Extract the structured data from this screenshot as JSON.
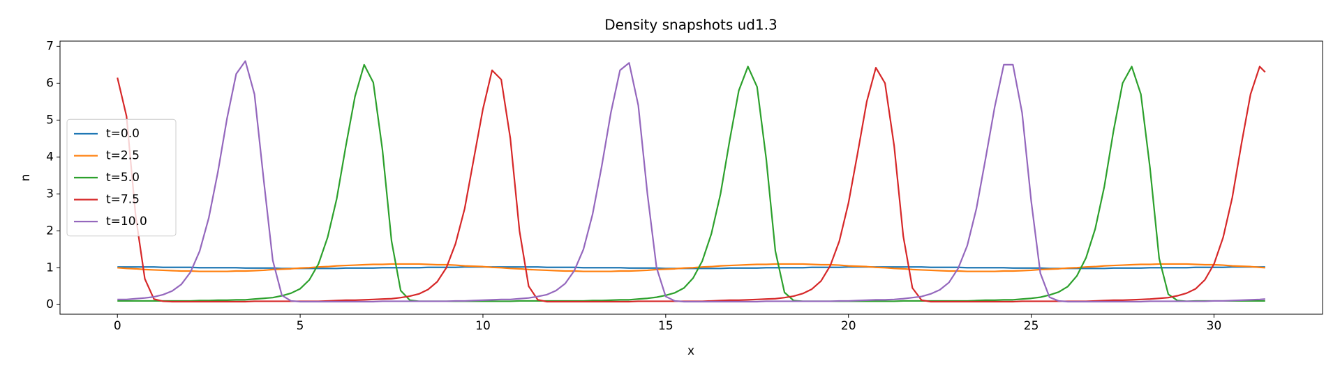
{
  "chart_data": {
    "type": "line",
    "title": "Density snapshots  ud1.3",
    "x_label": "x",
    "y_label": "n",
    "xlim": [
      -1.57,
      32.97
    ],
    "ylim": [
      -0.26,
      7.14
    ],
    "xticks": [
      0,
      5,
      10,
      15,
      20,
      25,
      30
    ],
    "yticks": [
      0,
      1,
      2,
      3,
      4,
      5,
      6,
      7
    ],
    "grid": false,
    "legend": "center left",
    "x": [
      0,
      0.25,
      0.5,
      0.75,
      1,
      1.25,
      1.5,
      1.75,
      2,
      2.25,
      2.5,
      2.75,
      3,
      3.25,
      3.5,
      3.75,
      4,
      4.25,
      4.5,
      4.75,
      5,
      5.25,
      5.5,
      5.75,
      6,
      6.25,
      6.5,
      6.75,
      7,
      7.25,
      7.5,
      7.75,
      8,
      8.25,
      8.5,
      8.75,
      9,
      9.25,
      9.5,
      9.75,
      10,
      10.25,
      10.5,
      10.75,
      11,
      11.25,
      11.5,
      11.75,
      12,
      12.25,
      12.5,
      12.75,
      13,
      13.25,
      13.5,
      13.75,
      14,
      14.25,
      14.5,
      14.75,
      15,
      15.25,
      15.5,
      15.75,
      16,
      16.25,
      16.5,
      16.75,
      17,
      17.25,
      17.5,
      17.75,
      18,
      18.25,
      18.5,
      18.75,
      19,
      19.25,
      19.5,
      19.75,
      20,
      20.25,
      20.5,
      20.75,
      21,
      21.25,
      21.5,
      21.75,
      22,
      22.25,
      22.5,
      22.75,
      23,
      23.25,
      23.5,
      23.75,
      24,
      24.25,
      24.5,
      24.75,
      25,
      25.25,
      25.5,
      25.75,
      26,
      26.25,
      26.5,
      26.75,
      27,
      27.25,
      27.5,
      27.75,
      28,
      28.25,
      28.5,
      28.75,
      29,
      29.25,
      29.5,
      29.75,
      30,
      30.25,
      30.5,
      30.75,
      31,
      31.25,
      31.4
    ],
    "series": [
      {
        "name": "t=0.0",
        "color": "#1f77b4",
        "values": [
          1.02,
          1.02,
          1.02,
          1.02,
          1.02,
          1.01,
          1.01,
          1.01,
          1.01,
          1.0,
          1.0,
          1.0,
          1.0,
          1.0,
          0.99,
          0.99,
          0.99,
          0.99,
          0.98,
          0.98,
          0.98,
          0.98,
          0.98,
          0.98,
          0.98,
          0.99,
          0.99,
          0.99,
          0.99,
          1.0,
          1.0,
          1.0,
          1.0,
          1.0,
          1.01,
          1.01,
          1.01,
          1.01,
          1.02,
          1.02,
          1.02,
          1.02,
          1.02,
          1.02,
          1.02,
          1.02,
          1.02,
          1.01,
          1.01,
          1.01,
          1.01,
          1.0,
          1.0,
          1.0,
          1.0,
          1.0,
          0.99,
          0.99,
          0.99,
          0.99,
          0.98,
          0.98,
          0.98,
          0.98,
          0.98,
          0.98,
          0.98,
          0.99,
          0.99,
          0.99,
          0.99,
          1.0,
          1.0,
          1.0,
          1.0,
          1.0,
          1.01,
          1.01,
          1.01,
          1.01,
          1.02,
          1.02,
          1.02,
          1.02,
          1.02,
          1.02,
          1.02,
          1.02,
          1.02,
          1.01,
          1.01,
          1.01,
          1.01,
          1.0,
          1.0,
          1.0,
          1.0,
          1.0,
          0.99,
          0.99,
          0.99,
          0.99,
          0.98,
          0.98,
          0.98,
          0.98,
          0.98,
          0.98,
          0.98,
          0.99,
          0.99,
          0.99,
          0.99,
          1.0,
          1.0,
          1.0,
          1.0,
          1.0,
          1.01,
          1.01,
          1.01,
          1.01,
          1.02,
          1.02,
          1.02,
          1.02,
          1.02
        ]
      },
      {
        "name": "t=2.5",
        "color": "#ff7f0e",
        "values": [
          1.0,
          0.98,
          0.97,
          0.95,
          0.94,
          0.93,
          0.92,
          0.91,
          0.91,
          0.9,
          0.9,
          0.9,
          0.9,
          0.91,
          0.91,
          0.92,
          0.93,
          0.95,
          0.96,
          0.97,
          0.99,
          1.0,
          1.02,
          1.03,
          1.05,
          1.06,
          1.07,
          1.08,
          1.09,
          1.09,
          1.1,
          1.1,
          1.1,
          1.1,
          1.09,
          1.08,
          1.08,
          1.07,
          1.05,
          1.04,
          1.03,
          1.01,
          1.0,
          0.98,
          0.97,
          0.95,
          0.94,
          0.93,
          0.92,
          0.91,
          0.91,
          0.9,
          0.9,
          0.9,
          0.9,
          0.91,
          0.91,
          0.92,
          0.93,
          0.95,
          0.96,
          0.97,
          0.99,
          1.0,
          1.02,
          1.03,
          1.05,
          1.06,
          1.07,
          1.08,
          1.09,
          1.09,
          1.1,
          1.1,
          1.1,
          1.1,
          1.09,
          1.08,
          1.08,
          1.07,
          1.05,
          1.04,
          1.03,
          1.01,
          1.0,
          0.98,
          0.97,
          0.95,
          0.94,
          0.93,
          0.92,
          0.91,
          0.91,
          0.9,
          0.9,
          0.9,
          0.9,
          0.91,
          0.91,
          0.92,
          0.93,
          0.95,
          0.96,
          0.97,
          0.99,
          1.0,
          1.02,
          1.03,
          1.05,
          1.06,
          1.07,
          1.08,
          1.09,
          1.09,
          1.1,
          1.1,
          1.1,
          1.1,
          1.09,
          1.08,
          1.08,
          1.07,
          1.05,
          1.04,
          1.03,
          1.01,
          1.0
        ]
      },
      {
        "name": "t=5.0",
        "color": "#2ca02c",
        "values": [
          0.1,
          0.1,
          0.1,
          0.1,
          0.1,
          0.1,
          0.1,
          0.1,
          0.1,
          0.11,
          0.11,
          0.12,
          0.12,
          0.13,
          0.13,
          0.15,
          0.17,
          0.19,
          0.24,
          0.31,
          0.43,
          0.67,
          1.1,
          1.82,
          2.87,
          4.3,
          5.64,
          6.5,
          6.02,
          4.2,
          1.72,
          0.38,
          0.12,
          0.09,
          0.09,
          0.09,
          0.09,
          0.09,
          0.09,
          0.09,
          0.09,
          0.09,
          0.09,
          0.09,
          0.1,
          0.1,
          0.1,
          0.1,
          0.1,
          0.1,
          0.1,
          0.1,
          0.11,
          0.11,
          0.12,
          0.13,
          0.13,
          0.15,
          0.17,
          0.2,
          0.25,
          0.32,
          0.45,
          0.72,
          1.18,
          1.92,
          3.0,
          4.45,
          5.8,
          6.45,
          5.9,
          3.95,
          1.45,
          0.33,
          0.11,
          0.09,
          0.09,
          0.09,
          0.09,
          0.09,
          0.09,
          0.09,
          0.09,
          0.09,
          0.09,
          0.09,
          0.1,
          0.1,
          0.1,
          0.1,
          0.1,
          0.1,
          0.1,
          0.1,
          0.11,
          0.12,
          0.12,
          0.13,
          0.13,
          0.15,
          0.17,
          0.2,
          0.26,
          0.34,
          0.49,
          0.78,
          1.27,
          2.05,
          3.2,
          4.7,
          6.0,
          6.45,
          5.7,
          3.7,
          1.25,
          0.28,
          0.11,
          0.09,
          0.1,
          0.1,
          0.1,
          0.1,
          0.1,
          0.1,
          0.1,
          0.1,
          0.1
        ]
      },
      {
        "name": "t=7.5",
        "color": "#d62728",
        "values": [
          6.15,
          5.1,
          2.4,
          0.7,
          0.15,
          0.09,
          0.08,
          0.08,
          0.08,
          0.08,
          0.08,
          0.08,
          0.08,
          0.08,
          0.08,
          0.09,
          0.09,
          0.09,
          0.09,
          0.09,
          0.09,
          0.09,
          0.09,
          0.1,
          0.11,
          0.12,
          0.12,
          0.13,
          0.14,
          0.15,
          0.16,
          0.19,
          0.23,
          0.29,
          0.41,
          0.62,
          1.0,
          1.65,
          2.6,
          3.95,
          5.3,
          6.35,
          6.1,
          4.5,
          2.0,
          0.5,
          0.13,
          0.08,
          0.08,
          0.08,
          0.08,
          0.08,
          0.08,
          0.08,
          0.08,
          0.08,
          0.08,
          0.09,
          0.09,
          0.09,
          0.09,
          0.09,
          0.09,
          0.09,
          0.09,
          0.1,
          0.11,
          0.12,
          0.12,
          0.13,
          0.14,
          0.15,
          0.16,
          0.19,
          0.23,
          0.3,
          0.42,
          0.64,
          1.05,
          1.72,
          2.75,
          4.1,
          5.5,
          6.42,
          6.0,
          4.3,
          1.85,
          0.45,
          0.12,
          0.08,
          0.08,
          0.08,
          0.08,
          0.08,
          0.08,
          0.08,
          0.08,
          0.08,
          0.08,
          0.09,
          0.09,
          0.09,
          0.09,
          0.09,
          0.09,
          0.09,
          0.09,
          0.1,
          0.11,
          0.12,
          0.12,
          0.13,
          0.14,
          0.15,
          0.17,
          0.19,
          0.24,
          0.31,
          0.43,
          0.67,
          1.1,
          1.82,
          2.9,
          4.35,
          5.7,
          6.45,
          6.3
        ]
      },
      {
        "name": "t=10.0",
        "color": "#9467bd",
        "values": [
          0.14,
          0.14,
          0.16,
          0.18,
          0.21,
          0.27,
          0.37,
          0.55,
          0.88,
          1.45,
          2.35,
          3.6,
          5.05,
          6.25,
          6.6,
          5.7,
          3.4,
          1.2,
          0.25,
          0.1,
          0.08,
          0.08,
          0.08,
          0.08,
          0.08,
          0.08,
          0.08,
          0.08,
          0.08,
          0.09,
          0.09,
          0.09,
          0.09,
          0.09,
          0.09,
          0.09,
          0.09,
          0.1,
          0.1,
          0.11,
          0.12,
          0.13,
          0.14,
          0.14,
          0.16,
          0.18,
          0.22,
          0.27,
          0.38,
          0.57,
          0.92,
          1.5,
          2.45,
          3.75,
          5.2,
          6.35,
          6.55,
          5.4,
          3.0,
          1.0,
          0.22,
          0.1,
          0.08,
          0.08,
          0.08,
          0.08,
          0.08,
          0.08,
          0.08,
          0.08,
          0.08,
          0.09,
          0.09,
          0.09,
          0.09,
          0.09,
          0.09,
          0.09,
          0.09,
          0.1,
          0.1,
          0.11,
          0.12,
          0.13,
          0.13,
          0.14,
          0.16,
          0.19,
          0.22,
          0.29,
          0.4,
          0.6,
          0.98,
          1.6,
          2.6,
          3.95,
          5.35,
          6.5,
          6.5,
          5.2,
          2.8,
          0.85,
          0.2,
          0.1,
          0.08,
          0.08,
          0.08,
          0.08,
          0.08,
          0.08,
          0.08,
          0.08,
          0.08,
          0.09,
          0.09,
          0.09,
          0.09,
          0.09,
          0.09,
          0.09,
          0.1,
          0.1,
          0.11,
          0.12,
          0.13,
          0.14,
          0.15
        ]
      }
    ]
  }
}
